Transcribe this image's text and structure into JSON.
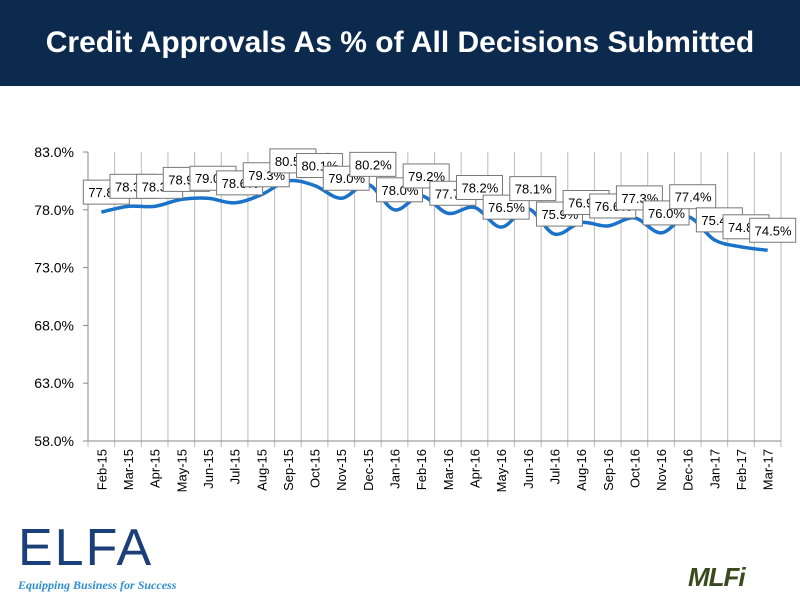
{
  "title": "Credit Approvals As % of All Decisions Submitted",
  "logos": {
    "left": "ELFA",
    "left_tagline": "Equipping Business for Success",
    "right": "MLFi"
  },
  "chart_data": {
    "type": "line",
    "title": "Credit Approvals As % of All Decisions Submitted",
    "categories": [
      "Feb-15",
      "Mar-15",
      "Apr-15",
      "May-15",
      "Jun-15",
      "Jul-15",
      "Aug-15",
      "Sep-15",
      "Oct-15",
      "Nov-15",
      "Dec-15",
      "Jan-16",
      "Feb-16",
      "Mar-16",
      "Apr-16",
      "May-16",
      "Jun-16",
      "Jul-16",
      "Aug-16",
      "Sep-16",
      "Oct-16",
      "Nov-16",
      "Dec-16",
      "Jan-17",
      "Feb-17",
      "Mar-17"
    ],
    "values": [
      77.8,
      78.3,
      78.3,
      78.9,
      79.0,
      78.6,
      79.3,
      80.5,
      80.1,
      79.0,
      80.2,
      78.0,
      79.2,
      77.7,
      78.2,
      76.5,
      78.1,
      75.9,
      76.9,
      76.6,
      77.3,
      76.0,
      77.4,
      75.4,
      74.8,
      74.5
    ],
    "ylim": [
      58,
      83
    ],
    "yticks": [
      "58.0%",
      "63.0%",
      "68.0%",
      "73.0%",
      "78.0%",
      "83.0%"
    ],
    "ytick_values": [
      58,
      63,
      68,
      73,
      78,
      83
    ],
    "grid": "vertical",
    "line_color": "#1a73c8",
    "xlabel": "",
    "ylabel": ""
  }
}
